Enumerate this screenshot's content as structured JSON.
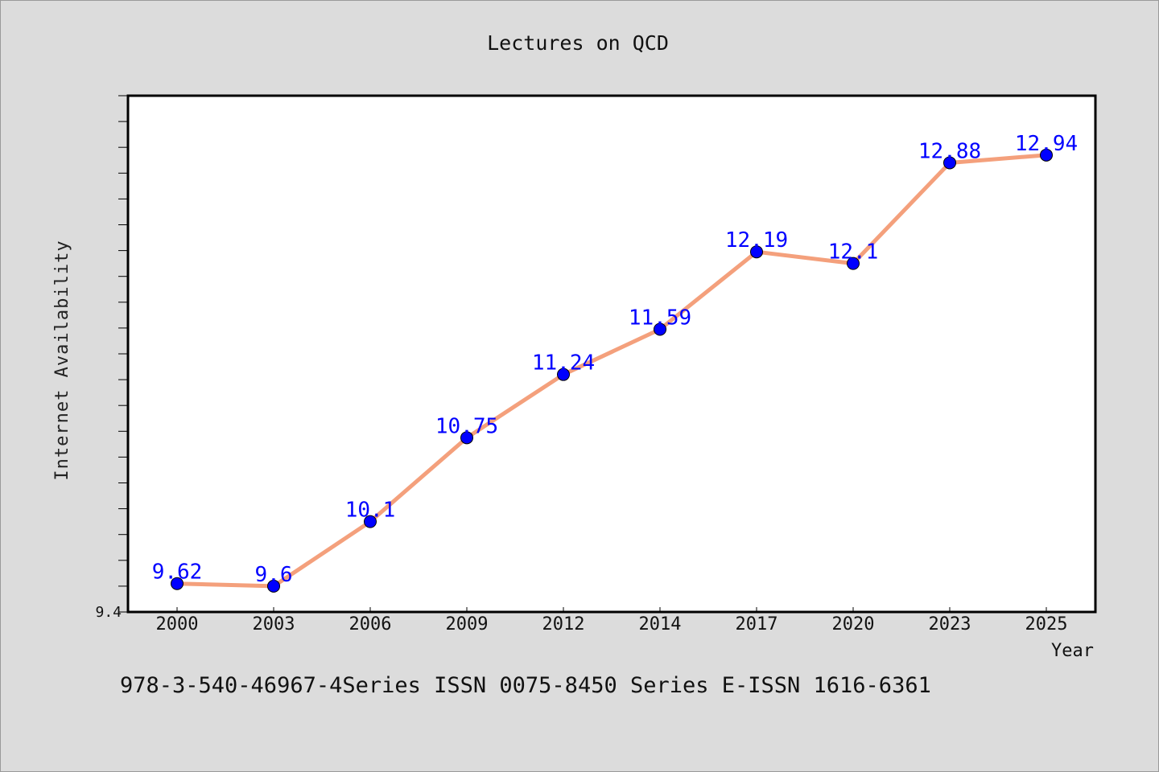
{
  "colors": {
    "background": "#dcdcdc",
    "plot_background": "#ffffff",
    "line": "#f4a07c",
    "marker": "#0000ff",
    "data_label": "#0000ff"
  },
  "footer": "978-3-540-46967-4Series ISSN 0075-8450 Series E-ISSN 1616-6361",
  "chart_data": {
    "type": "line",
    "title": "Lectures on QCD",
    "xlabel": "Year",
    "ylabel": "Internet Availability",
    "categories": [
      "2000",
      "2003",
      "2006",
      "2009",
      "2012",
      "2014",
      "2017",
      "2020",
      "2023",
      "2025"
    ],
    "series": [
      {
        "values": [
          9.62,
          9.6,
          10.1,
          10.75,
          11.24,
          11.59,
          12.19,
          12.1,
          12.88,
          12.94
        ],
        "labels": [
          "9.62",
          "9.6",
          "10.1",
          "10.75",
          "11.24",
          "11.59",
          "12.19",
          "12.1",
          "12.88",
          "12.94"
        ]
      }
    ],
    "ylim": [
      9.4,
      13.4
    ],
    "yticks": [
      9.4
    ],
    "y_minor_step": 0.2,
    "grid": false,
    "legend": "none"
  }
}
